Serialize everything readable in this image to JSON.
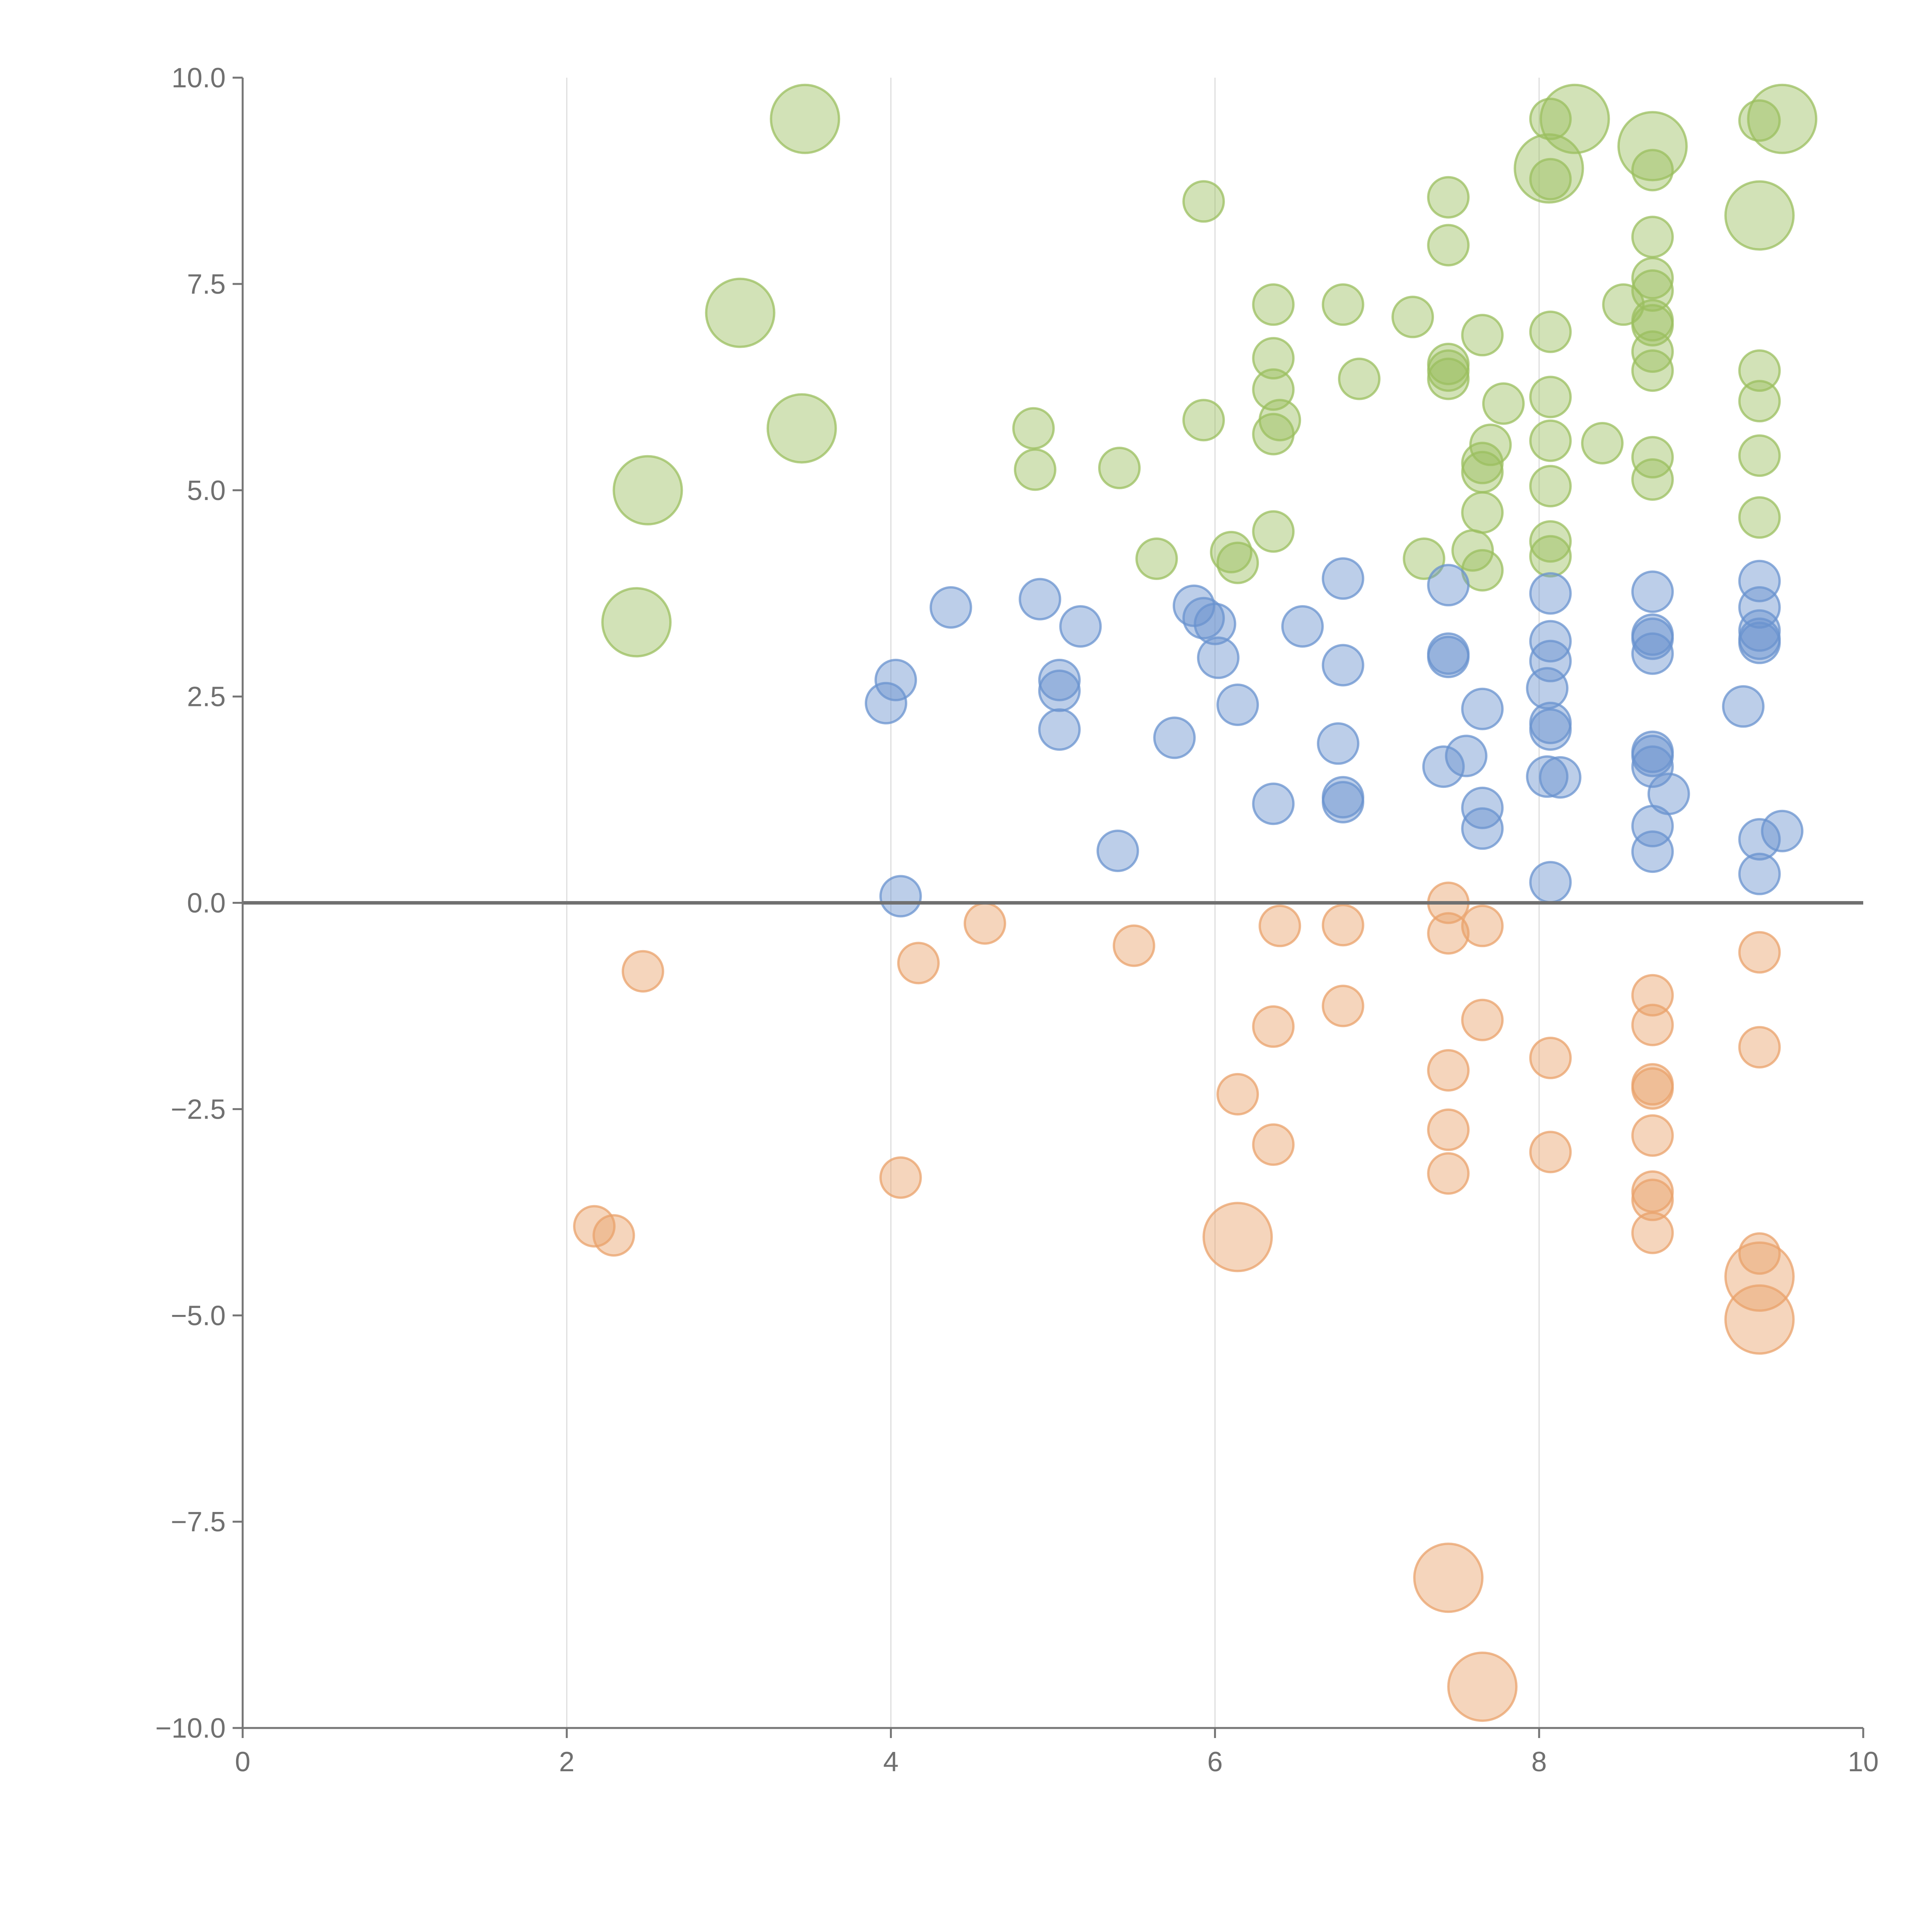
{
  "chart_data": {
    "type": "scatter",
    "title": "",
    "xlabel": "",
    "ylabel": "",
    "xlim": [
      0,
      10
    ],
    "ylim": [
      -10,
      10
    ],
    "x_ticks": [
      0,
      2,
      4,
      6,
      8,
      10
    ],
    "x_tick_labels": [
      "0",
      "2",
      "4",
      "6",
      "8",
      "10"
    ],
    "y_ticks": [
      10,
      7.5,
      5,
      2.5,
      0,
      -2.5,
      -5,
      -7.5,
      -10
    ],
    "y_tick_labels": [
      "10.0",
      "7.5",
      "5.0",
      "2.5",
      "0.0",
      "−2.5",
      "−5.0",
      "−7.5",
      "−10.0"
    ],
    "vertical_grid": true,
    "horizontal_grid": false,
    "reference_line_y": 0,
    "series": [
      {
        "name": "green",
        "color": "#9bbf5f",
        "points": [
          [
            3.47,
            9.5,
            3
          ],
          [
            3.07,
            7.15,
            3
          ],
          [
            3.45,
            5.75,
            3
          ],
          [
            2.5,
            5.0,
            3
          ],
          [
            2.43,
            3.4,
            3
          ],
          [
            8.22,
            9.5,
            3
          ],
          [
            8.06,
            8.9,
            3
          ],
          [
            8.7,
            9.17,
            3
          ],
          [
            9.5,
            9.5,
            3
          ],
          [
            9.36,
            8.33,
            3
          ],
          [
            5.93,
            8.5,
            1
          ],
          [
            7.44,
            8.55,
            1
          ],
          [
            7.44,
            7.97,
            1
          ],
          [
            8.07,
            9.5,
            1
          ],
          [
            8.07,
            8.77,
            1
          ],
          [
            8.7,
            8.88,
            1
          ],
          [
            9.36,
            9.48,
            1
          ],
          [
            8.7,
            8.07,
            1
          ],
          [
            8.7,
            7.57,
            1
          ],
          [
            8.7,
            7.42,
            1
          ],
          [
            8.7,
            7.06,
            1
          ],
          [
            8.7,
            7.0,
            1
          ],
          [
            8.7,
            6.68,
            1
          ],
          [
            8.7,
            6.45,
            1
          ],
          [
            8.52,
            7.25,
            1
          ],
          [
            6.36,
            7.25,
            1
          ],
          [
            6.79,
            7.25,
            1
          ],
          [
            7.22,
            7.1,
            1
          ],
          [
            7.65,
            6.88,
            1
          ],
          [
            8.07,
            6.92,
            1
          ],
          [
            6.36,
            6.6,
            1
          ],
          [
            7.44,
            6.53,
            1
          ],
          [
            7.44,
            6.45,
            1
          ],
          [
            7.44,
            6.35,
            1
          ],
          [
            6.89,
            6.35,
            1
          ],
          [
            7.78,
            6.05,
            1
          ],
          [
            8.07,
            6.13,
            1
          ],
          [
            9.36,
            6.45,
            1
          ],
          [
            9.36,
            6.08,
            1
          ],
          [
            6.36,
            6.22,
            1
          ],
          [
            6.4,
            5.85,
            1
          ],
          [
            6.36,
            5.68,
            1
          ],
          [
            5.93,
            5.85,
            1
          ],
          [
            4.88,
            5.75,
            1
          ],
          [
            4.89,
            5.25,
            1
          ],
          [
            5.41,
            5.27,
            1
          ],
          [
            7.7,
            5.55,
            1
          ],
          [
            7.65,
            5.33,
            1
          ],
          [
            7.65,
            5.22,
            1
          ],
          [
            8.07,
            5.6,
            1
          ],
          [
            8.39,
            5.57,
            1
          ],
          [
            8.7,
            5.4,
            1
          ],
          [
            8.7,
            5.13,
            1
          ],
          [
            9.36,
            5.42,
            1
          ],
          [
            8.07,
            5.05,
            1
          ],
          [
            7.65,
            4.73,
            1
          ],
          [
            9.36,
            4.67,
            1
          ],
          [
            6.36,
            4.5,
            1
          ],
          [
            8.07,
            4.38,
            1
          ],
          [
            8.07,
            4.2,
            1
          ],
          [
            7.59,
            4.27,
            1
          ],
          [
            7.29,
            4.17,
            1
          ],
          [
            7.65,
            4.03,
            1
          ],
          [
            5.64,
            4.17,
            1
          ],
          [
            6.1,
            4.25,
            1
          ],
          [
            6.14,
            4.12,
            1
          ]
        ]
      },
      {
        "name": "blue",
        "color": "#6a93cf",
        "points": [
          [
            4.37,
            3.58,
            1
          ],
          [
            4.92,
            3.68,
            1
          ],
          [
            5.17,
            3.35,
            1
          ],
          [
            5.87,
            3.6,
            1
          ],
          [
            5.93,
            3.45,
            1
          ],
          [
            6.0,
            3.38,
            1
          ],
          [
            6.54,
            3.35,
            1
          ],
          [
            6.79,
            3.93,
            1
          ],
          [
            7.44,
            3.85,
            1
          ],
          [
            8.07,
            3.75,
            1
          ],
          [
            8.7,
            3.77,
            1
          ],
          [
            9.36,
            3.9,
            1
          ],
          [
            9.36,
            3.58,
            1
          ],
          [
            9.36,
            3.3,
            1
          ],
          [
            9.36,
            3.2,
            1
          ],
          [
            9.36,
            3.15,
            1
          ],
          [
            8.7,
            3.25,
            1
          ],
          [
            8.7,
            3.2,
            1
          ],
          [
            8.7,
            3.02,
            1
          ],
          [
            8.07,
            3.17,
            1
          ],
          [
            8.07,
            2.93,
            1
          ],
          [
            7.44,
            3.02,
            1
          ],
          [
            7.44,
            2.98,
            1
          ],
          [
            6.79,
            2.88,
            1
          ],
          [
            6.02,
            2.97,
            1
          ],
          [
            4.03,
            2.7,
            1
          ],
          [
            3.97,
            2.42,
            1
          ],
          [
            5.04,
            2.7,
            1
          ],
          [
            5.04,
            2.57,
            1
          ],
          [
            5.04,
            2.1,
            1
          ],
          [
            5.75,
            2.0,
            1
          ],
          [
            6.14,
            2.4,
            1
          ],
          [
            6.76,
            1.93,
            1
          ],
          [
            7.65,
            2.35,
            1
          ],
          [
            8.05,
            2.6,
            1
          ],
          [
            8.07,
            2.18,
            1
          ],
          [
            8.07,
            2.1,
            1
          ],
          [
            9.26,
            2.38,
            1
          ],
          [
            8.7,
            1.83,
            1
          ],
          [
            8.7,
            1.78,
            1
          ],
          [
            8.7,
            1.65,
            1
          ],
          [
            7.55,
            1.78,
            1
          ],
          [
            7.41,
            1.65,
            1
          ],
          [
            8.05,
            1.53,
            1
          ],
          [
            8.13,
            1.52,
            1
          ],
          [
            8.8,
            1.32,
            1
          ],
          [
            6.36,
            1.2,
            1
          ],
          [
            6.79,
            1.28,
            1
          ],
          [
            6.79,
            1.22,
            1
          ],
          [
            7.65,
            1.15,
            1
          ],
          [
            7.65,
            0.9,
            1
          ],
          [
            8.7,
            0.93,
            1
          ],
          [
            8.7,
            0.62,
            1
          ],
          [
            9.36,
            0.77,
            1
          ],
          [
            9.5,
            0.87,
            1
          ],
          [
            9.36,
            0.35,
            1
          ],
          [
            8.07,
            0.25,
            1
          ],
          [
            5.4,
            0.63,
            1
          ],
          [
            4.06,
            0.08,
            1
          ]
        ]
      },
      {
        "name": "orange",
        "color": "#e9a26b",
        "points": [
          [
            7.44,
            0.0,
            1
          ],
          [
            7.44,
            -0.37,
            1
          ],
          [
            7.65,
            -0.28,
            1
          ],
          [
            6.79,
            -0.27,
            1
          ],
          [
            6.4,
            -0.28,
            1
          ],
          [
            4.58,
            -0.25,
            1
          ],
          [
            5.5,
            -0.52,
            1
          ],
          [
            4.17,
            -0.73,
            1
          ],
          [
            2.47,
            -0.83,
            1
          ],
          [
            9.36,
            -0.6,
            1
          ],
          [
            8.7,
            -1.12,
            1
          ],
          [
            8.7,
            -1.48,
            1
          ],
          [
            9.36,
            -1.75,
            1
          ],
          [
            6.79,
            -1.25,
            1
          ],
          [
            6.36,
            -1.5,
            1
          ],
          [
            7.65,
            -1.42,
            1
          ],
          [
            8.07,
            -1.88,
            1
          ],
          [
            7.44,
            -2.03,
            1
          ],
          [
            6.14,
            -2.32,
            1
          ],
          [
            8.7,
            -2.2,
            1
          ],
          [
            8.7,
            -2.25,
            1
          ],
          [
            7.44,
            -2.75,
            1
          ],
          [
            8.7,
            -2.82,
            1
          ],
          [
            6.36,
            -2.93,
            1
          ],
          [
            8.07,
            -3.02,
            1
          ],
          [
            7.44,
            -3.28,
            1
          ],
          [
            4.06,
            -3.33,
            1
          ],
          [
            8.7,
            -3.5,
            1
          ],
          [
            8.7,
            -3.6,
            1
          ],
          [
            8.7,
            -4.0,
            1
          ],
          [
            2.17,
            -3.92,
            1
          ],
          [
            2.29,
            -4.03,
            1
          ],
          [
            9.36,
            -4.25,
            1
          ],
          [
            6.14,
            -4.05,
            3
          ],
          [
            9.36,
            -4.53,
            3
          ],
          [
            9.36,
            -5.05,
            3
          ],
          [
            7.44,
            -8.18,
            3
          ],
          [
            7.65,
            -9.5,
            3
          ]
        ]
      }
    ]
  }
}
